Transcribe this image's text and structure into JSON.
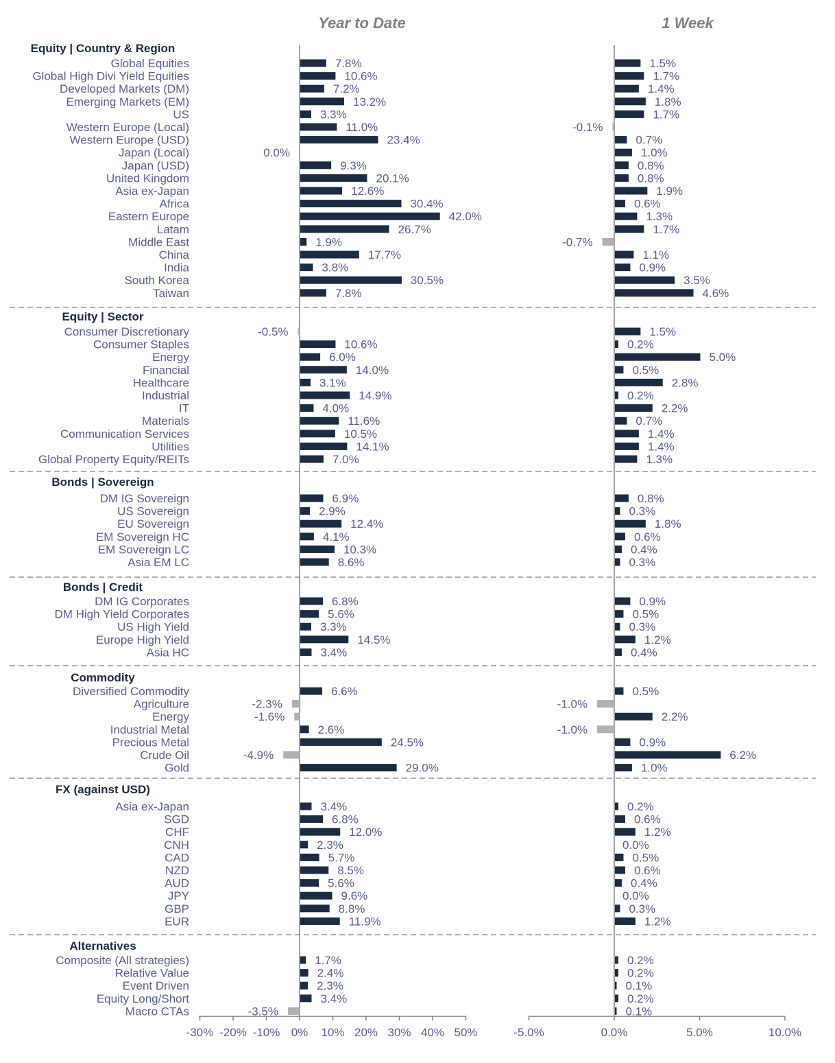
{
  "colors": {
    "positive_bar": "#1c2b40",
    "negative_bar": "#b0b0b0",
    "label_text": "#5a5f8c",
    "group_text": "#1c2b40",
    "title_text": "#808080",
    "axis": "#808080",
    "divider": "#b0b0b0"
  },
  "chart_data": {
    "type": "bar",
    "orientation": "horizontal",
    "panels": [
      {
        "title": "Year to Date",
        "xlim": [
          -30,
          50
        ],
        "ticks": [
          -30,
          -20,
          -10,
          0,
          10,
          20,
          30,
          40,
          50
        ],
        "tick_labels": [
          "-30%",
          "-20%",
          "-10%",
          "0%",
          "10%",
          "20%",
          "30%",
          "40%",
          "50%"
        ]
      },
      {
        "title": "1 Week",
        "xlim": [
          -5,
          10
        ],
        "ticks": [
          -5,
          0,
          5,
          10
        ],
        "tick_labels": [
          "-5.0%",
          "0.0%",
          "5.0%",
          "10.0%"
        ]
      }
    ],
    "groups": [
      {
        "name": "Equity | Country & Region",
        "rows": [
          {
            "label": "Global Equities",
            "ytd": 7.8,
            "ytd_label": "7.8%",
            "wk": 1.5,
            "wk_label": "1.5%"
          },
          {
            "label": "Global High Divi Yield Equities",
            "ytd": 10.6,
            "ytd_label": "10.6%",
            "wk": 1.7,
            "wk_label": "1.7%"
          },
          {
            "label": "Developed Markets (DM)",
            "ytd": 7.2,
            "ytd_label": "7.2%",
            "wk": 1.4,
            "wk_label": "1.4%"
          },
          {
            "label": "Emerging Markets (EM)",
            "ytd": 13.2,
            "ytd_label": "13.2%",
            "wk": 1.8,
            "wk_label": "1.8%"
          },
          {
            "label": "US",
            "ytd": 3.3,
            "ytd_label": "3.3%",
            "wk": 1.7,
            "wk_label": "1.7%"
          },
          {
            "label": "Western Europe (Local)",
            "ytd": 11.0,
            "ytd_label": "11.0%",
            "wk": -0.1,
            "wk_label": "-0.1%"
          },
          {
            "label": "Western Europe (USD)",
            "ytd": 23.4,
            "ytd_label": "23.4%",
            "wk": 0.7,
            "wk_label": "0.7%"
          },
          {
            "label": "Japan (Local)",
            "ytd": 0.0,
            "ytd_label": "0.0%",
            "wk": 1.0,
            "wk_label": "1.0%"
          },
          {
            "label": "Japan (USD)",
            "ytd": 9.3,
            "ytd_label": "9.3%",
            "wk": 0.8,
            "wk_label": "0.8%"
          },
          {
            "label": "United Kingdom",
            "ytd": 20.1,
            "ytd_label": "20.1%",
            "wk": 0.8,
            "wk_label": "0.8%"
          },
          {
            "label": "Asia ex-Japan",
            "ytd": 12.6,
            "ytd_label": "12.6%",
            "wk": 1.9,
            "wk_label": "1.9%"
          },
          {
            "label": "Africa",
            "ytd": 30.4,
            "ytd_label": "30.4%",
            "wk": 0.6,
            "wk_label": "0.6%"
          },
          {
            "label": "Eastern Europe",
            "ytd": 42.0,
            "ytd_label": "42.0%",
            "wk": 1.3,
            "wk_label": "1.3%"
          },
          {
            "label": "Latam",
            "ytd": 26.7,
            "ytd_label": "26.7%",
            "wk": 1.7,
            "wk_label": "1.7%"
          },
          {
            "label": "Middle East",
            "ytd": 1.9,
            "ytd_label": "1.9%",
            "wk": -0.7,
            "wk_label": "-0.7%"
          },
          {
            "label": "China",
            "ytd": 17.7,
            "ytd_label": "17.7%",
            "wk": 1.1,
            "wk_label": "1.1%"
          },
          {
            "label": "India",
            "ytd": 3.8,
            "ytd_label": "3.8%",
            "wk": 0.9,
            "wk_label": "0.9%"
          },
          {
            "label": "South Korea",
            "ytd": 30.5,
            "ytd_label": "30.5%",
            "wk": 3.5,
            "wk_label": "3.5%"
          },
          {
            "label": "Taiwan",
            "ytd": 7.8,
            "ytd_label": "7.8%",
            "wk": 4.6,
            "wk_label": "4.6%"
          }
        ]
      },
      {
        "name": "Equity | Sector",
        "rows": [
          {
            "label": "Consumer Discretionary",
            "ytd": -0.5,
            "ytd_label": "-0.5%",
            "wk": 1.5,
            "wk_label": "1.5%"
          },
          {
            "label": "Consumer Staples",
            "ytd": 10.6,
            "ytd_label": "10.6%",
            "wk": 0.2,
            "wk_label": "0.2%"
          },
          {
            "label": "Energy",
            "ytd": 6.0,
            "ytd_label": "6.0%",
            "wk": 5.0,
            "wk_label": "5.0%"
          },
          {
            "label": "Financial",
            "ytd": 14.0,
            "ytd_label": "14.0%",
            "wk": 0.5,
            "wk_label": "0.5%"
          },
          {
            "label": "Healthcare",
            "ytd": 3.1,
            "ytd_label": "3.1%",
            "wk": 2.8,
            "wk_label": "2.8%"
          },
          {
            "label": "Industrial",
            "ytd": 14.9,
            "ytd_label": "14.9%",
            "wk": 0.2,
            "wk_label": "0.2%"
          },
          {
            "label": "IT",
            "ytd": 4.0,
            "ytd_label": "4.0%",
            "wk": 2.2,
            "wk_label": "2.2%"
          },
          {
            "label": "Materials",
            "ytd": 11.6,
            "ytd_label": "11.6%",
            "wk": 0.7,
            "wk_label": "0.7%"
          },
          {
            "label": "Communication Services",
            "ytd": 10.5,
            "ytd_label": "10.5%",
            "wk": 1.4,
            "wk_label": "1.4%"
          },
          {
            "label": "Utilities",
            "ytd": 14.1,
            "ytd_label": "14.1%",
            "wk": 1.4,
            "wk_label": "1.4%"
          },
          {
            "label": "Global Property Equity/REITs",
            "ytd": 7.0,
            "ytd_label": "7.0%",
            "wk": 1.3,
            "wk_label": "1.3%"
          }
        ]
      },
      {
        "name": "Bonds | Sovereign",
        "rows": [
          {
            "label": "DM IG Sovereign",
            "ytd": 6.9,
            "ytd_label": "6.9%",
            "wk": 0.8,
            "wk_label": "0.8%"
          },
          {
            "label": "US Sovereign",
            "ytd": 2.9,
            "ytd_label": "2.9%",
            "wk": 0.3,
            "wk_label": "0.3%"
          },
          {
            "label": "EU Sovereign",
            "ytd": 12.4,
            "ytd_label": "12.4%",
            "wk": 1.8,
            "wk_label": "1.8%"
          },
          {
            "label": "EM Sovereign HC",
            "ytd": 4.1,
            "ytd_label": "4.1%",
            "wk": 0.6,
            "wk_label": "0.6%"
          },
          {
            "label": "EM Sovereign LC",
            "ytd": 10.3,
            "ytd_label": "10.3%",
            "wk": 0.4,
            "wk_label": "0.4%"
          },
          {
            "label": "Asia EM LC",
            "ytd": 8.6,
            "ytd_label": "8.6%",
            "wk": 0.3,
            "wk_label": "0.3%"
          }
        ]
      },
      {
        "name": "Bonds | Credit",
        "rows": [
          {
            "label": "DM IG Corporates",
            "ytd": 6.8,
            "ytd_label": "6.8%",
            "wk": 0.9,
            "wk_label": "0.9%"
          },
          {
            "label": "DM High Yield Corporates",
            "ytd": 5.6,
            "ytd_label": "5.6%",
            "wk": 0.5,
            "wk_label": "0.5%"
          },
          {
            "label": "US High Yield",
            "ytd": 3.3,
            "ytd_label": "3.3%",
            "wk": 0.3,
            "wk_label": "0.3%"
          },
          {
            "label": "Europe High Yield",
            "ytd": 14.5,
            "ytd_label": "14.5%",
            "wk": 1.2,
            "wk_label": "1.2%"
          },
          {
            "label": "Asia HC",
            "ytd": 3.4,
            "ytd_label": "3.4%",
            "wk": 0.4,
            "wk_label": "0.4%"
          }
        ]
      },
      {
        "name": "Commodity",
        "rows": [
          {
            "label": "Diversified Commodity",
            "ytd": 6.6,
            "ytd_label": "6.6%",
            "wk": 0.5,
            "wk_label": "0.5%"
          },
          {
            "label": "Agriculture",
            "ytd": -2.3,
            "ytd_label": "-2.3%",
            "wk": -1.0,
            "wk_label": "-1.0%"
          },
          {
            "label": "Energy",
            "ytd": -1.6,
            "ytd_label": "-1.6%",
            "wk": 2.2,
            "wk_label": "2.2%"
          },
          {
            "label": "Industrial Metal",
            "ytd": 2.6,
            "ytd_label": "2.6%",
            "wk": -1.0,
            "wk_label": "-1.0%"
          },
          {
            "label": "Precious Metal",
            "ytd": 24.5,
            "ytd_label": "24.5%",
            "wk": 0.9,
            "wk_label": "0.9%"
          },
          {
            "label": "Crude Oil",
            "ytd": -4.9,
            "ytd_label": "-4.9%",
            "wk": 6.2,
            "wk_label": "6.2%"
          },
          {
            "label": "Gold",
            "ytd": 29.0,
            "ytd_label": "29.0%",
            "wk": 1.0,
            "wk_label": "1.0%"
          }
        ]
      },
      {
        "name": "FX (against USD)",
        "rows": [
          {
            "label": "Asia ex-Japan",
            "ytd": 3.4,
            "ytd_label": "3.4%",
            "wk": 0.2,
            "wk_label": "0.2%"
          },
          {
            "label": "SGD",
            "ytd": 6.8,
            "ytd_label": "6.8%",
            "wk": 0.6,
            "wk_label": "0.6%"
          },
          {
            "label": "CHF",
            "ytd": 12.0,
            "ytd_label": "12.0%",
            "wk": 1.2,
            "wk_label": "1.2%"
          },
          {
            "label": "CNH",
            "ytd": 2.3,
            "ytd_label": "2.3%",
            "wk": 0.0,
            "wk_label": "0.0%"
          },
          {
            "label": "CAD",
            "ytd": 5.7,
            "ytd_label": "5.7%",
            "wk": 0.5,
            "wk_label": "0.5%"
          },
          {
            "label": "NZD",
            "ytd": 8.5,
            "ytd_label": "8.5%",
            "wk": 0.6,
            "wk_label": "0.6%"
          },
          {
            "label": "AUD",
            "ytd": 5.6,
            "ytd_label": "5.6%",
            "wk": 0.4,
            "wk_label": "0.4%"
          },
          {
            "label": "JPY",
            "ytd": 9.6,
            "ytd_label": "9.6%",
            "wk": 0.0,
            "wk_label": "0.0%"
          },
          {
            "label": "GBP",
            "ytd": 8.8,
            "ytd_label": "8.8%",
            "wk": 0.3,
            "wk_label": "0.3%"
          },
          {
            "label": "EUR",
            "ytd": 11.9,
            "ytd_label": "11.9%",
            "wk": 1.2,
            "wk_label": "1.2%"
          }
        ]
      },
      {
        "name": "Alternatives",
        "rows": [
          {
            "label": "Composite (All strategies)",
            "ytd": 1.7,
            "ytd_label": "1.7%",
            "wk": 0.2,
            "wk_label": "0.2%"
          },
          {
            "label": "Relative Value",
            "ytd": 2.4,
            "ytd_label": "2.4%",
            "wk": 0.2,
            "wk_label": "0.2%"
          },
          {
            "label": "Event Driven",
            "ytd": 2.3,
            "ytd_label": "2.3%",
            "wk": 0.1,
            "wk_label": "0.1%"
          },
          {
            "label": "Equity Long/Short",
            "ytd": 3.4,
            "ytd_label": "3.4%",
            "wk": 0.2,
            "wk_label": "0.2%"
          },
          {
            "label": "Macro CTAs",
            "ytd": -3.5,
            "ytd_label": "-3.5%",
            "wk": 0.1,
            "wk_label": "0.1%"
          }
        ]
      }
    ]
  }
}
